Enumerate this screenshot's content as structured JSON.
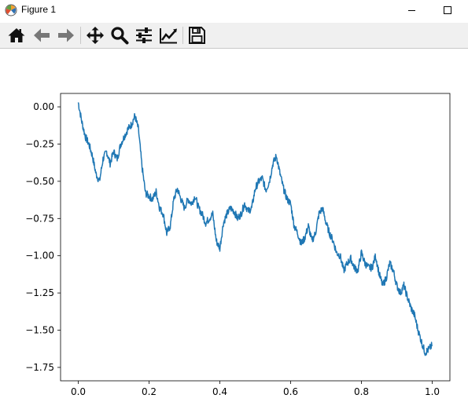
{
  "window": {
    "title": "Figure 1",
    "controls": [
      "minimize",
      "maximize"
    ]
  },
  "toolbar": {
    "buttons": [
      {
        "name": "home",
        "icon": "home-icon"
      },
      {
        "name": "back",
        "icon": "arrow-left-icon"
      },
      {
        "name": "forward",
        "icon": "arrow-right-icon"
      },
      {
        "name": "pan",
        "icon": "move-icon"
      },
      {
        "name": "zoom",
        "icon": "magnifier-icon"
      },
      {
        "name": "configure-subplots",
        "icon": "sliders-icon"
      },
      {
        "name": "edit-axis",
        "icon": "trend-chart-icon"
      },
      {
        "name": "save",
        "icon": "floppy-disk-icon"
      }
    ]
  },
  "colors": {
    "line": "#1f77b4",
    "axes": "#000000",
    "toolbar_bg": "#f0f0f0"
  },
  "chart_data": {
    "type": "line",
    "title": "",
    "xlabel": "",
    "ylabel": "",
    "xlim": [
      -0.05,
      1.05
    ],
    "ylim": [
      -1.84,
      0.09
    ],
    "xticks": [
      0.0,
      0.2,
      0.4,
      0.6,
      0.8,
      1.0
    ],
    "xticklabels": [
      "0.0",
      "0.2",
      "0.4",
      "0.6",
      "0.8",
      "1.0"
    ],
    "yticks": [
      0.0,
      -0.25,
      -0.5,
      -0.75,
      -1.0,
      -1.25,
      -1.5,
      -1.75
    ],
    "yticklabels": [
      "0.00",
      "−0.25",
      "−0.50",
      "−0.75",
      "−1.00",
      "−1.25",
      "−1.50",
      "−1.75"
    ],
    "grid": false,
    "series": [
      {
        "x": [
          0.0,
          0.01,
          0.02,
          0.03,
          0.04,
          0.05,
          0.06,
          0.07,
          0.08,
          0.09,
          0.1,
          0.11,
          0.12,
          0.13,
          0.14,
          0.15,
          0.16,
          0.17,
          0.18,
          0.19,
          0.2,
          0.21,
          0.22,
          0.23,
          0.24,
          0.25,
          0.26,
          0.27,
          0.28,
          0.29,
          0.3,
          0.31,
          0.32,
          0.33,
          0.34,
          0.35,
          0.36,
          0.37,
          0.38,
          0.39,
          0.4,
          0.41,
          0.42,
          0.43,
          0.44,
          0.45,
          0.46,
          0.47,
          0.48,
          0.49,
          0.5,
          0.51,
          0.52,
          0.53,
          0.54,
          0.55,
          0.56,
          0.57,
          0.58,
          0.59,
          0.6,
          0.61,
          0.62,
          0.63,
          0.64,
          0.65,
          0.66,
          0.67,
          0.68,
          0.69,
          0.7,
          0.71,
          0.72,
          0.73,
          0.74,
          0.75,
          0.76,
          0.77,
          0.78,
          0.79,
          0.8,
          0.81,
          0.82,
          0.83,
          0.84,
          0.85,
          0.86,
          0.87,
          0.88,
          0.89,
          0.9,
          0.91,
          0.92,
          0.93,
          0.94,
          0.95,
          0.96,
          0.97,
          0.98,
          0.99,
          1.0
        ],
        "y": [
          0.03,
          -0.1,
          -0.2,
          -0.25,
          -0.33,
          -0.45,
          -0.5,
          -0.35,
          -0.3,
          -0.38,
          -0.3,
          -0.35,
          -0.25,
          -0.2,
          -0.15,
          -0.12,
          -0.06,
          -0.15,
          -0.4,
          -0.58,
          -0.6,
          -0.62,
          -0.57,
          -0.68,
          -0.72,
          -0.85,
          -0.8,
          -0.62,
          -0.55,
          -0.62,
          -0.68,
          -0.62,
          -0.65,
          -0.6,
          -0.68,
          -0.72,
          -0.78,
          -0.75,
          -0.72,
          -0.9,
          -0.95,
          -0.78,
          -0.72,
          -0.68,
          -0.7,
          -0.75,
          -0.72,
          -0.65,
          -0.7,
          -0.68,
          -0.55,
          -0.5,
          -0.48,
          -0.56,
          -0.5,
          -0.38,
          -0.33,
          -0.45,
          -0.55,
          -0.62,
          -0.65,
          -0.8,
          -0.85,
          -0.92,
          -0.88,
          -0.8,
          -0.9,
          -0.85,
          -0.72,
          -0.68,
          -0.78,
          -0.85,
          -0.9,
          -0.98,
          -1.0,
          -1.1,
          -1.05,
          -1.02,
          -1.08,
          -1.1,
          -0.98,
          -1.05,
          -1.08,
          -1.08,
          -1.0,
          -1.12,
          -1.2,
          -1.15,
          -1.05,
          -1.1,
          -1.2,
          -1.25,
          -1.2,
          -1.28,
          -1.35,
          -1.4,
          -1.5,
          -1.58,
          -1.65,
          -1.63,
          -1.6
        ]
      }
    ]
  }
}
